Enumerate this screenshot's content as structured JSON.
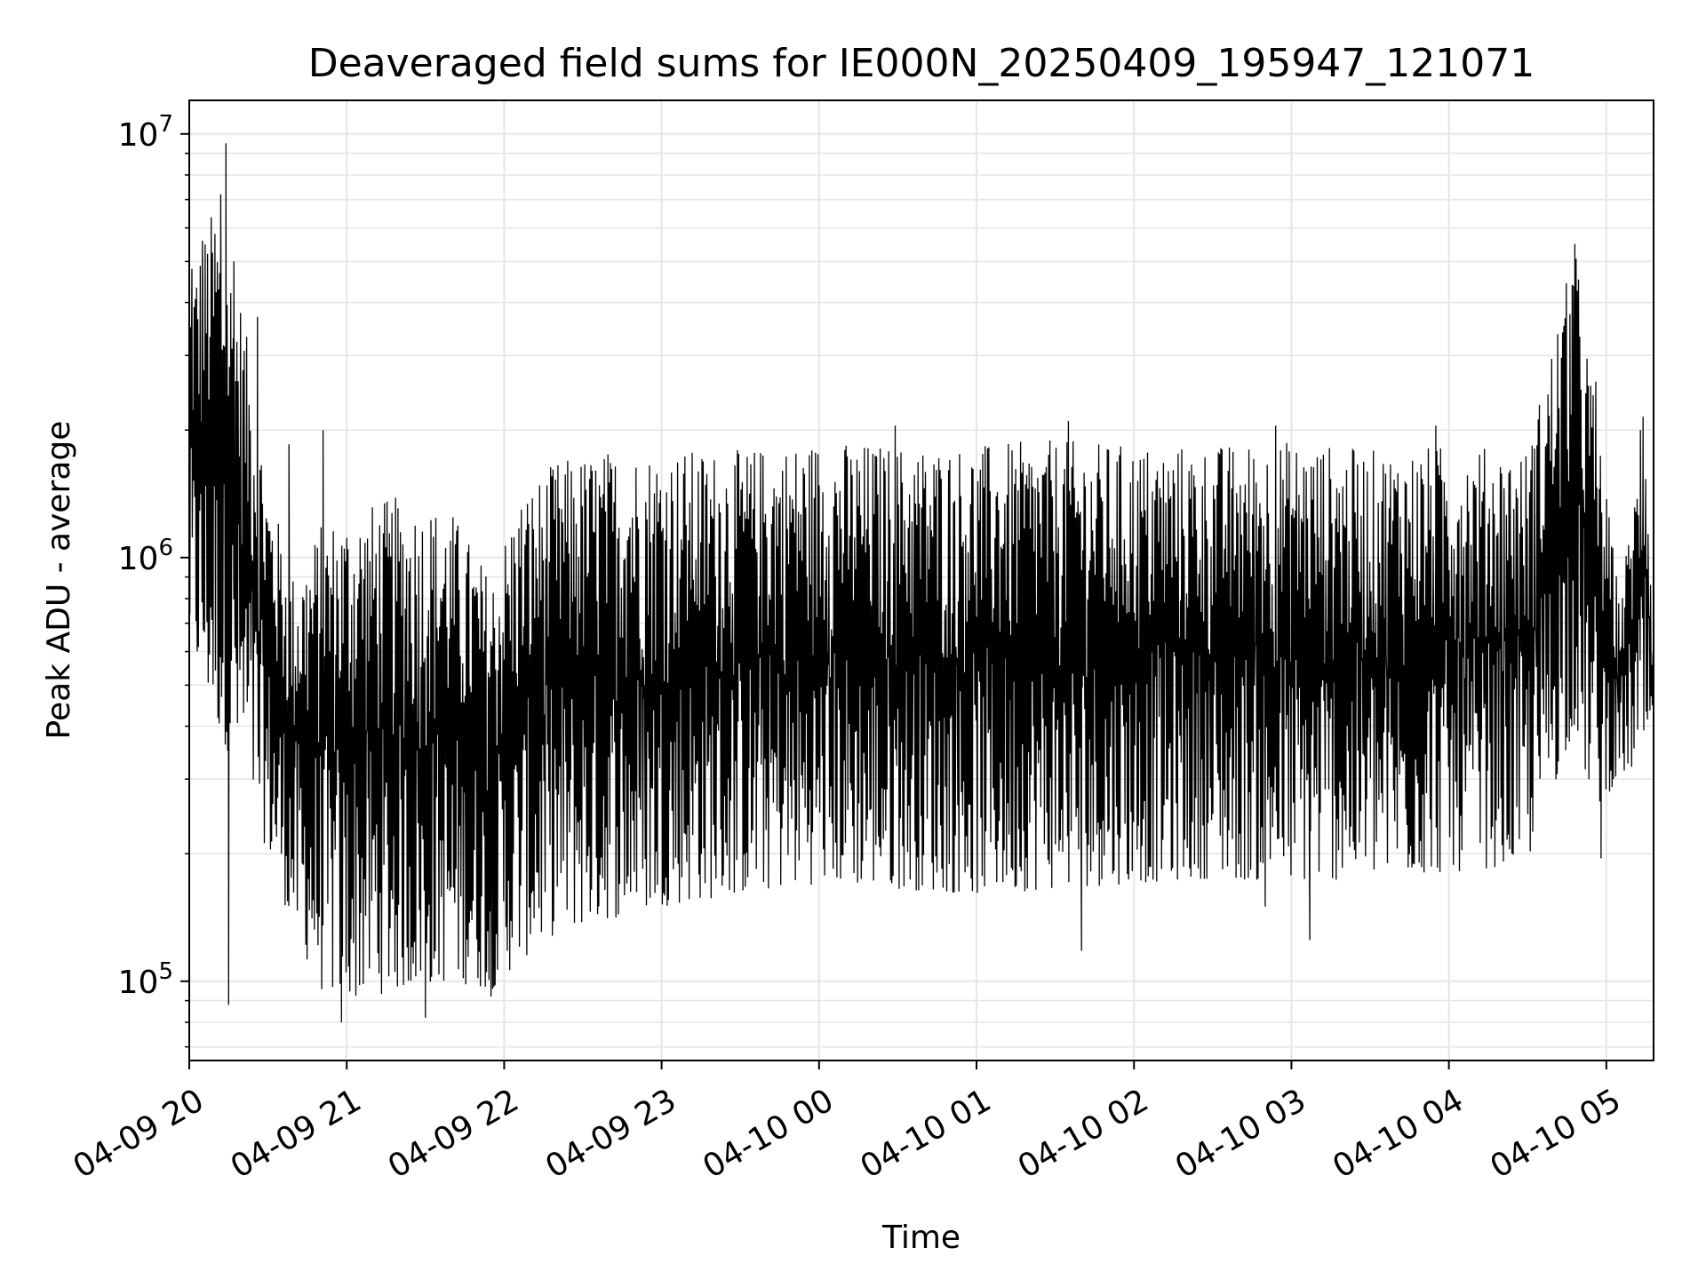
{
  "chart_data": {
    "type": "line",
    "title": "Deaveraged field sums for IE000N_20250409_195947_121071",
    "xlabel": "Time",
    "ylabel": "Peak ADU - average",
    "yscale": "log",
    "xlim": [
      "2025-04-09 20:00",
      "2025-04-10 05:18"
    ],
    "ylim": [
      65000,
      12000000
    ],
    "grid": true,
    "x_ticks": [
      "04-09 20",
      "04-09 21",
      "04-09 22",
      "04-09 23",
      "04-10 00",
      "04-10 01",
      "04-10 02",
      "04-10 03",
      "04-10 04",
      "04-10 05"
    ],
    "y_ticks": [
      {
        "value": 100000,
        "base": "10",
        "exp": "5"
      },
      {
        "value": 1000000,
        "base": "10",
        "exp": "6"
      },
      {
        "value": 10000000,
        "base": "10",
        "exp": "7"
      }
    ],
    "series": [
      {
        "color": "#000000",
        "envelope": {
          "x": [
            "2025-04-09 20:00",
            "2025-04-09 20:10",
            "2025-04-09 20:20",
            "2025-04-09 20:30",
            "2025-04-09 20:40",
            "2025-04-09 20:50",
            "2025-04-09 21:00",
            "2025-04-09 21:20",
            "2025-04-09 21:40",
            "2025-04-09 21:55",
            "2025-04-09 22:05",
            "2025-04-09 22:20",
            "2025-04-09 22:40",
            "2025-04-09 23:00",
            "2025-04-09 23:30",
            "2025-04-10 00:00",
            "2025-04-10 00:30",
            "2025-04-10 01:00",
            "2025-04-10 01:30",
            "2025-04-10 02:00",
            "2025-04-10 02:30",
            "2025-04-10 03:00",
            "2025-04-10 03:30",
            "2025-04-10 04:00",
            "2025-04-10 04:30",
            "2025-04-10 04:48",
            "2025-04-10 04:55",
            "2025-04-10 05:05",
            "2025-04-10 05:15",
            "2025-04-10 05:18"
          ],
          "upper": [
            4500000,
            7000000,
            4000000,
            1500000,
            900000,
            1200000,
            1300000,
            1400000,
            1300000,
            900000,
            1400000,
            1700000,
            1800000,
            1800000,
            1800000,
            1900000,
            1850000,
            1850000,
            1900000,
            1850000,
            1850000,
            1900000,
            1800000,
            1850000,
            1800000,
            5500000,
            2500000,
            800000,
            2200000,
            600000
          ],
          "lower": [
            600000,
            400000,
            300000,
            200000,
            130000,
            95000,
            90000,
            95000,
            100000,
            95000,
            110000,
            130000,
            140000,
            150000,
            160000,
            170000,
            165000,
            160000,
            165000,
            170000,
            175000,
            170000,
            175000,
            180000,
            190000,
            400000,
            250000,
            300000,
            330000,
            350000
          ]
        },
        "peaks": [
          {
            "x": "2025-04-09 20:01",
            "y": 4800000
          },
          {
            "x": "2025-04-09 20:05",
            "y": 5600000
          },
          {
            "x": "2025-04-09 20:12",
            "y": 7200000
          },
          {
            "x": "2025-04-09 20:14",
            "y": 9500000
          },
          {
            "x": "2025-04-09 20:17",
            "y": 5000000
          },
          {
            "x": "2025-04-09 20:26",
            "y": 3700000
          },
          {
            "x": "2025-04-09 20:38",
            "y": 1850000
          },
          {
            "x": "2025-04-09 20:51",
            "y": 2000000
          },
          {
            "x": "2025-04-10 00:29",
            "y": 2050000
          },
          {
            "x": "2025-04-10 01:35",
            "y": 2100000
          },
          {
            "x": "2025-04-10 02:54",
            "y": 2050000
          },
          {
            "x": "2025-04-10 03:55",
            "y": 2050000
          },
          {
            "x": "2025-04-10 04:47",
            "y": 4400000
          },
          {
            "x": "2025-04-10 04:48",
            "y": 5500000
          },
          {
            "x": "2025-04-10 04:56",
            "y": 2600000
          },
          {
            "x": "2025-04-10 05:13",
            "y": 2000000
          },
          {
            "x": "2025-04-10 05:14",
            "y": 2150000
          }
        ],
        "troughs": [
          {
            "x": "2025-04-09 20:15",
            "y": 88000
          },
          {
            "x": "2025-04-09 20:58",
            "y": 80000
          },
          {
            "x": "2025-04-09 21:30",
            "y": 82000
          },
          {
            "x": "2025-04-09 21:55",
            "y": 92000
          },
          {
            "x": "2025-04-10 01:40",
            "y": 118000
          },
          {
            "x": "2025-04-10 02:50",
            "y": 150000
          },
          {
            "x": "2025-04-10 03:07",
            "y": 125000
          },
          {
            "x": "2025-04-10 04:58",
            "y": 195000
          }
        ]
      }
    ]
  }
}
